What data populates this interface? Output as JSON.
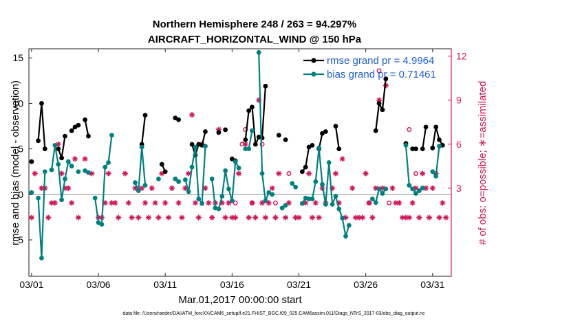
{
  "chart_data": {
    "type": "line",
    "title_line1": "Northern Hemisphere 248 / 263 = 94.297%",
    "title_line2": "AIRCRAFT_HORIZONTAL_WIND @ 150 hPa",
    "xlabel": "Mar.01,2017 00:00:00 start",
    "ylabel": "rmse and bias (model - observation)",
    "ylabel_right": "# of obs: o=possible; ∗=assimilated",
    "footnote": "data file: /Users/raeder/DAI/ATM_forcXX/CAM6_setup/f.e21.FHIST_BGC.f09_025.CAM6assim.011/Diags_NTrS_2017-03/obs_diag_output.nc",
    "xlim": [
      0.8,
      32.4
    ],
    "ylim": [
      -9,
      16
    ],
    "ylim_right": [
      -3,
      12.5
    ],
    "xticks": [
      1,
      6,
      11,
      16,
      21,
      26,
      31
    ],
    "xtick_labels": [
      "03/01",
      "03/06",
      "03/11",
      "03/16",
      "03/21",
      "03/26",
      "03/31"
    ],
    "yticks": [
      -5,
      0,
      5,
      10,
      15
    ],
    "yticks_right": [
      3,
      6,
      9,
      12
    ],
    "colors": {
      "rmse": "#000000",
      "bias": "#008080",
      "obs": "#d4145a",
      "zero_line": "#b3b3b3"
    },
    "series": [
      {
        "name": "rmse grand pr = 4.9964",
        "color": "#000000",
        "points": [
          [
            1.0,
            3.6
          ],
          [
            1.5,
            5.9
          ],
          [
            1.75,
            10.0
          ],
          [
            2.0,
            5.0
          ],
          [
            3.0,
            5.0
          ],
          [
            3.25,
            4.0
          ],
          [
            3.5,
            6.4
          ],
          [
            4.0,
            7.0
          ],
          [
            4.25,
            7.4
          ],
          [
            4.5,
            7.6
          ],
          [
            5.0,
            8.2
          ],
          [
            5.25,
            6.4
          ],
          [
            9.25,
            5.5
          ],
          [
            9.5,
            8.7
          ],
          [
            10.75,
            3.3
          ],
          [
            11.0,
            2.5
          ],
          [
            11.75,
            8.4
          ],
          [
            12.0,
            8.2
          ],
          [
            13.0,
            5.5
          ],
          [
            13.25,
            4.3
          ],
          [
            13.5,
            5.5
          ],
          [
            13.75,
            5.4
          ],
          [
            14.0,
            6.9
          ],
          [
            15.0,
            6.8
          ],
          [
            15.5,
            7.1
          ],
          [
            16.0,
            3.9
          ],
          [
            16.25,
            3.7
          ],
          [
            17.0,
            6.0
          ],
          [
            17.25,
            9.2
          ],
          [
            17.5,
            9.6
          ],
          [
            17.75,
            5.5
          ],
          [
            18.0,
            6.3
          ],
          [
            18.25,
            6.2
          ],
          [
            18.5,
            11.9
          ],
          [
            19.5,
            6.5
          ],
          [
            20.0,
            6.0
          ],
          [
            21.25,
            2.5
          ],
          [
            21.5,
            3.0
          ],
          [
            21.75,
            5.2
          ],
          [
            22.0,
            5.4
          ],
          [
            22.5,
            5.0
          ],
          [
            22.75,
            6.7
          ],
          [
            23.0,
            6.9
          ],
          [
            23.75,
            7.5
          ],
          [
            24.0,
            5.0
          ],
          [
            26.75,
            7.0
          ],
          [
            27.0,
            10.0
          ],
          [
            27.25,
            9.3
          ],
          [
            27.5,
            12.7
          ],
          [
            29.0,
            5.6
          ],
          [
            29.5,
            5.0
          ],
          [
            29.75,
            5.0
          ],
          [
            30.25,
            5.0
          ],
          [
            30.5,
            7.4
          ],
          [
            31.0,
            5.1
          ],
          [
            31.25,
            7.4
          ],
          [
            31.5,
            6.0
          ],
          [
            31.75,
            5.4
          ]
        ]
      },
      {
        "name": "bias grand pr = 0.71461",
        "color": "#008080",
        "points": [
          [
            1.0,
            0.2
          ],
          [
            1.5,
            -0.4
          ],
          [
            1.75,
            -7.0
          ],
          [
            2.0,
            2.5
          ],
          [
            2.5,
            2.7
          ],
          [
            2.75,
            5.4
          ],
          [
            3.0,
            3.3
          ],
          [
            3.25,
            -0.6
          ],
          [
            3.5,
            1.7
          ],
          [
            3.75,
            3.6
          ],
          [
            4.0,
            3.1
          ],
          [
            4.5,
            2.5
          ],
          [
            5.0,
            2.6
          ],
          [
            5.25,
            2.4
          ],
          [
            5.75,
            -0.4
          ],
          [
            6.0,
            -3.1
          ],
          [
            6.25,
            -3.3
          ],
          [
            6.5,
            3.0
          ],
          [
            6.75,
            3.5
          ],
          [
            7.0,
            6.5
          ],
          [
            8.75,
            1.3
          ],
          [
            9.0,
            0.4
          ],
          [
            9.25,
            5.2
          ],
          [
            9.5,
            1.0
          ],
          [
            10.5,
            1.7
          ],
          [
            11.75,
            1.7
          ],
          [
            12.0,
            1.4
          ],
          [
            12.5,
            1.6
          ],
          [
            12.75,
            0.3
          ],
          [
            13.0,
            3.0
          ],
          [
            13.25,
            5.2
          ],
          [
            13.5,
            -0.5
          ],
          [
            13.75,
            -1.0
          ],
          [
            14.0,
            5.3
          ],
          [
            14.5,
            1.7
          ],
          [
            14.75,
            -1.5
          ],
          [
            15.0,
            -1.6
          ],
          [
            15.25,
            -0.2
          ],
          [
            15.5,
            2.6
          ],
          [
            15.75,
            0.6
          ],
          [
            16.0,
            -0.7
          ],
          [
            16.25,
            3.6
          ],
          [
            16.5,
            2.9
          ],
          [
            17.0,
            5.0
          ],
          [
            17.25,
            5.0
          ],
          [
            17.5,
            7.0
          ],
          [
            18.0,
            15.6
          ],
          [
            18.25,
            2.3
          ],
          [
            18.5,
            -0.7
          ],
          [
            18.75,
            0.2
          ],
          [
            19.0,
            0.0
          ],
          [
            19.75,
            -1.5
          ],
          [
            20.0,
            -1.2
          ],
          [
            20.5,
            1.2
          ],
          [
            20.75,
            0.8
          ],
          [
            21.25,
            -1.0
          ],
          [
            21.5,
            -0.4
          ],
          [
            21.75,
            -0.5
          ],
          [
            22.0,
            -0.5
          ],
          [
            22.25,
            1.4
          ],
          [
            22.5,
            5.1
          ],
          [
            22.75,
            1.1
          ],
          [
            23.0,
            -1.1
          ],
          [
            23.25,
            3.5
          ],
          [
            23.5,
            -1.1
          ],
          [
            23.75,
            -0.2
          ],
          [
            24.0,
            -1.6
          ],
          [
            24.25,
            -2.6
          ],
          [
            24.5,
            -4.6
          ],
          [
            24.75,
            -3.4
          ],
          [
            26.5,
            -0.5
          ],
          [
            26.75,
            -0.9
          ],
          [
            27.0,
            0.6
          ],
          [
            27.25,
            0.1
          ],
          [
            27.5,
            0.6
          ],
          [
            29.0,
            5.4
          ],
          [
            29.25,
            1.0
          ],
          [
            29.5,
            0.6
          ],
          [
            29.75,
            0.1
          ],
          [
            30.0,
            0.4
          ],
          [
            30.25,
            0.7
          ],
          [
            31.0,
            2.5
          ],
          [
            31.25,
            2.0
          ],
          [
            31.5,
            5.3
          ]
        ]
      }
    ],
    "obs": {
      "name": "# of obs",
      "axis": "right",
      "possible_marker": "o",
      "assimilated_marker": "*",
      "possible": [
        [
          16.25,
          2.0
        ],
        [
          16.75,
          6.0
        ],
        [
          17.0,
          7.0
        ],
        [
          17.5,
          2.0
        ],
        [
          18.25,
          6.0
        ],
        [
          19.25,
          2.0
        ],
        [
          20.25,
          4.0
        ],
        [
          26.25,
          2.0
        ],
        [
          27.0,
          11.0
        ],
        [
          27.75,
          2.0
        ],
        [
          29.25,
          7.0
        ],
        [
          29.75,
          4.0
        ]
      ],
      "assimilated": [
        [
          1.0,
          1.0
        ],
        [
          1.25,
          4.0
        ],
        [
          1.75,
          3.0
        ],
        [
          2.0,
          3.0
        ],
        [
          2.25,
          1.0
        ],
        [
          2.5,
          2.0
        ],
        [
          2.75,
          2.0
        ],
        [
          3.0,
          6.0
        ],
        [
          3.25,
          4.0
        ],
        [
          3.5,
          3.0
        ],
        [
          3.75,
          3.0
        ],
        [
          4.0,
          2.0
        ],
        [
          4.25,
          5.0
        ],
        [
          4.5,
          1.0
        ],
        [
          5.0,
          5.0
        ],
        [
          5.5,
          4.0
        ],
        [
          6.0,
          1.0
        ],
        [
          6.25,
          1.0
        ],
        [
          6.5,
          2.0
        ],
        [
          6.75,
          4.0
        ],
        [
          7.0,
          2.0
        ],
        [
          7.25,
          2.0
        ],
        [
          7.5,
          1.0
        ],
        [
          8.0,
          4.0
        ],
        [
          8.25,
          2.0
        ],
        [
          8.5,
          1.0
        ],
        [
          8.75,
          3.0
        ],
        [
          9.0,
          1.0
        ],
        [
          9.25,
          3.0
        ],
        [
          9.5,
          2.0
        ],
        [
          9.75,
          1.0
        ],
        [
          10.0,
          3.0
        ],
        [
          10.25,
          2.0
        ],
        [
          10.5,
          1.0
        ],
        [
          10.75,
          4.0
        ],
        [
          11.0,
          2.0
        ],
        [
          11.25,
          1.0
        ],
        [
          11.5,
          3.0
        ],
        [
          12.0,
          2.0
        ],
        [
          12.25,
          1.0
        ],
        [
          12.5,
          3.0
        ],
        [
          12.75,
          4.0
        ],
        [
          13.0,
          8.0
        ],
        [
          13.25,
          2.0
        ],
        [
          13.5,
          1.0
        ],
        [
          13.75,
          6.0
        ],
        [
          14.0,
          3.0
        ],
        [
          14.25,
          2.0
        ],
        [
          14.5,
          1.0
        ],
        [
          14.75,
          2.0
        ],
        [
          15.0,
          7.0
        ],
        [
          15.25,
          2.0
        ],
        [
          15.5,
          1.0
        ],
        [
          15.75,
          2.0
        ],
        [
          16.0,
          1.0
        ],
        [
          16.25,
          1.0
        ],
        [
          16.5,
          4.0
        ],
        [
          17.0,
          6.0
        ],
        [
          17.25,
          1.0
        ],
        [
          17.5,
          2.0
        ],
        [
          17.75,
          1.0
        ],
        [
          18.0,
          9.0
        ],
        [
          18.25,
          2.0
        ],
        [
          18.5,
          1.0
        ],
        [
          18.75,
          2.0
        ],
        [
          19.0,
          3.0
        ],
        [
          19.25,
          1.0
        ],
        [
          19.5,
          4.0
        ],
        [
          20.0,
          1.0
        ],
        [
          20.25,
          2.0
        ],
        [
          20.75,
          1.0
        ],
        [
          21.0,
          1.0
        ],
        [
          21.5,
          2.0
        ],
        [
          21.75,
          4.0
        ],
        [
          22.0,
          1.0
        ],
        [
          22.25,
          2.0
        ],
        [
          22.5,
          1.0
        ],
        [
          22.75,
          3.0
        ],
        [
          23.0,
          2.0
        ],
        [
          23.5,
          3.0
        ],
        [
          23.75,
          4.0
        ],
        [
          24.0,
          2.0
        ],
        [
          24.25,
          5.0
        ],
        [
          24.5,
          1.0
        ],
        [
          25.0,
          3.0
        ],
        [
          25.25,
          1.0
        ],
        [
          25.5,
          1.0
        ],
        [
          25.75,
          1.0
        ],
        [
          26.0,
          4.0
        ],
        [
          26.25,
          2.0
        ],
        [
          26.5,
          1.0
        ],
        [
          26.75,
          3.0
        ],
        [
          27.0,
          9.0
        ],
        [
          27.25,
          3.0
        ],
        [
          27.5,
          10.0
        ],
        [
          28.0,
          3.0
        ],
        [
          28.25,
          2.0
        ],
        [
          28.5,
          2.0
        ],
        [
          28.75,
          1.0
        ],
        [
          29.0,
          1.0
        ],
        [
          29.25,
          1.0
        ],
        [
          29.5,
          2.0
        ],
        [
          29.75,
          3.0
        ],
        [
          30.0,
          1.0
        ],
        [
          30.25,
          4.0
        ],
        [
          30.5,
          3.0
        ],
        [
          30.75,
          1.0
        ],
        [
          31.0,
          3.0
        ],
        [
          31.25,
          4.0
        ],
        [
          31.5,
          1.0
        ],
        [
          31.75,
          2.0
        ],
        [
          32.0,
          1.0
        ]
      ]
    }
  }
}
